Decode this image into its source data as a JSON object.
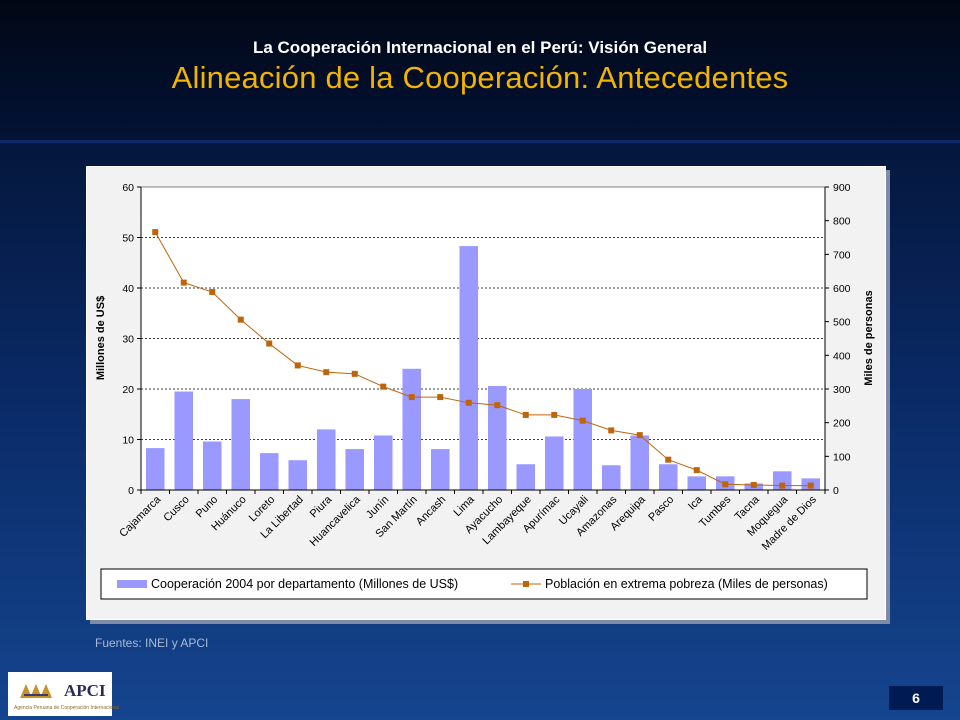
{
  "header": {
    "subtitle": "La Cooperación Internacional en el Perú: Visión General",
    "title": "Alineación de la Cooperación: Antecedentes"
  },
  "source_note": "Fuentes: INEI y APCI",
  "logo": {
    "text": "APCI",
    "subtext": "Agencia Peruana de Cooperación Internacional"
  },
  "page_number": "6",
  "colors": {
    "bar": "#9999ff",
    "line": "#c0640a",
    "title": "#f2b400"
  },
  "chart_data": {
    "type": "bar",
    "categories": [
      "Cajamarca",
      "Cusco",
      "Puno",
      "Huánuco",
      "Loreto",
      "La Libertad",
      "Piura",
      "Huancavelica",
      "Junín",
      "San Martín",
      "Ancash",
      "Lima",
      "Ayacucho",
      "Lambayeque",
      "Apurímac",
      "Ucayali",
      "Amazonas",
      "Arequipa",
      "Pasco",
      "Ica",
      "Tumbes",
      "Tacna",
      "Moquegua",
      "Madre de Dios"
    ],
    "series": [
      {
        "name": "Cooperación 2004 por departamento (Millones de US$)",
        "type": "bar",
        "axis": "left",
        "values": [
          8.3,
          19.5,
          9.6,
          18,
          7.3,
          5.9,
          12,
          8.1,
          10.8,
          24,
          8.1,
          48.3,
          20.6,
          5.1,
          10.6,
          20,
          4.9,
          10.8,
          5.1,
          2.7,
          2.7,
          1.3,
          3.7,
          2.3
        ]
      },
      {
        "name": "Población en extrema pobreza (Miles de personas)",
        "type": "line",
        "axis": "right",
        "values": [
          766,
          616,
          588,
          506,
          435,
          370,
          350,
          345,
          307,
          276,
          276,
          259,
          252,
          223,
          223,
          206,
          177,
          163,
          90,
          59,
          17,
          15,
          13,
          13
        ]
      }
    ],
    "ylabel": "Millones de US$",
    "y2label": "Miles de personas",
    "ylim": [
      0,
      60
    ],
    "y2lim": [
      0,
      900
    ],
    "yticks": [
      "0",
      "10",
      "20",
      "30",
      "40",
      "50",
      "60"
    ],
    "y2ticks": [
      "0",
      "100",
      "200",
      "300",
      "400",
      "500",
      "600",
      "700",
      "800",
      "900"
    ],
    "grid": "horizontal dashed",
    "legend_position": "bottom"
  }
}
